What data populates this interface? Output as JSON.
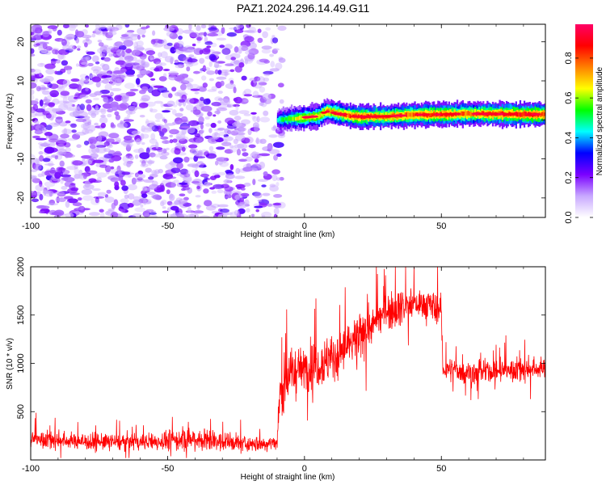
{
  "title": "PAZ1.2024.296.14.49.G11",
  "chart_data": [
    {
      "type": "heatmap",
      "xlabel": "Height of straight line (km)",
      "ylabel": "Frequency (Hz)",
      "xlim": [
        -100,
        88
      ],
      "ylim": [
        -25,
        24.5
      ],
      "xticks": [
        "-100",
        "-50",
        "0",
        "50"
      ],
      "yticks": [
        "-20",
        "-10",
        "0",
        "10",
        "20"
      ],
      "colorbar": {
        "label": "Normalized spectral amplitude",
        "range": [
          0,
          0.97
        ],
        "ticks": [
          "0.0",
          "0.2",
          "0.4",
          "0.6",
          "0.8"
        ],
        "colormap": [
          "#ffffff",
          "#c8a8ff",
          "#7a00ff",
          "#0000ff",
          "#00ffff",
          "#00ff00",
          "#ffff00",
          "#ff8000",
          "#ff0000",
          "#ff0066"
        ]
      },
      "noise_region_x": [
        -100,
        -10
      ],
      "signal_band": {
        "x": [
          -10,
          -5,
          0,
          5,
          8,
          15,
          20,
          30,
          40,
          50,
          60,
          70,
          80,
          88
        ],
        "center_freq": [
          0.0,
          0.3,
          0.6,
          1.0,
          2.2,
          1.2,
          0.8,
          0.9,
          1.3,
          1.4,
          1.6,
          1.5,
          1.4,
          1.4
        ],
        "amplitude": [
          0.45,
          0.6,
          0.7,
          0.7,
          0.75,
          0.8,
          0.85,
          0.8,
          0.82,
          0.85,
          0.8,
          0.85,
          0.88,
          0.85
        ]
      }
    },
    {
      "type": "line",
      "xlabel": "Height of straight line (km)",
      "ylabel": "SNR (10 * v/v)",
      "xlim": [
        -100,
        88
      ],
      "ylim": [
        0,
        2000
      ],
      "xticks": [
        "-100",
        "-50",
        "0",
        "50"
      ],
      "yticks": [
        "500",
        "1000",
        "1500",
        "2000"
      ],
      "series_color": "#ff0000",
      "snr_profile": {
        "x": [
          -100,
          -80,
          -60,
          -40,
          -20,
          -10,
          -9,
          -5,
          0,
          10,
          20,
          30,
          40,
          45,
          50,
          50.5,
          60,
          70,
          80,
          88
        ],
        "mean": [
          220,
          190,
          180,
          220,
          160,
          180,
          700,
          900,
          950,
          1050,
          1250,
          1550,
          1620,
          1600,
          1550,
          950,
          900,
          920,
          940,
          950
        ],
        "spread": [
          120,
          120,
          110,
          160,
          100,
          110,
          300,
          320,
          320,
          330,
          300,
          250,
          220,
          220,
          200,
          150,
          140,
          160,
          160,
          150
        ]
      }
    }
  ]
}
